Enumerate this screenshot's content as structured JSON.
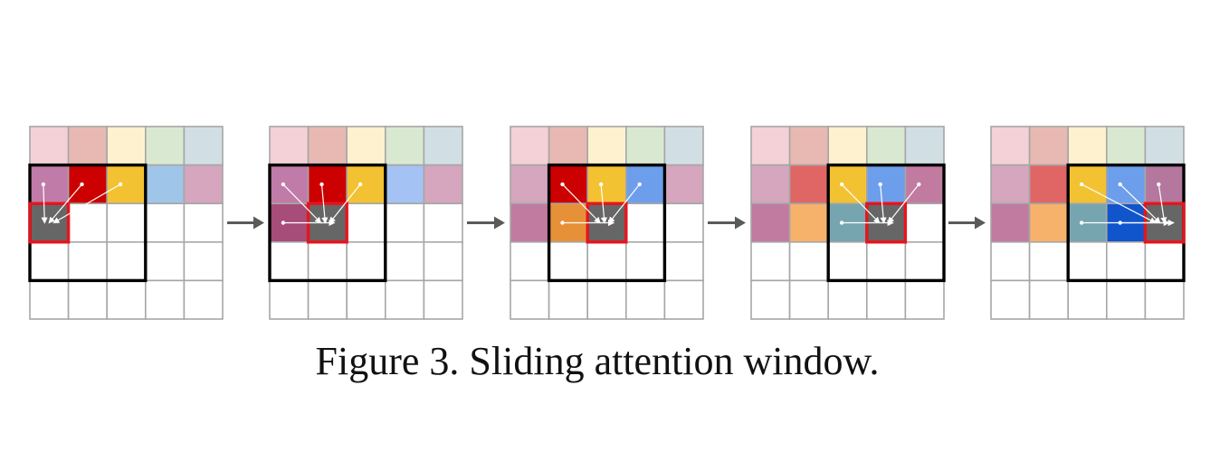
{
  "caption": "Figure 3. Sliding attention window.",
  "grid": {
    "rows": 5,
    "cols": 5,
    "empty_color": "#ffffff",
    "grid_line_color": "#a6a6a6",
    "window_border_color": "#000000",
    "query_border_color": "#e8141c",
    "query_fill_color": "#666666",
    "arrow_color": "#ffffff",
    "connector_icon": "right-arrow-icon",
    "connector_color": "#5a5a5a"
  },
  "steps": [
    {
      "query": [
        2,
        0
      ],
      "window": {
        "row_start": 1,
        "row_end": 3,
        "col_start": 0,
        "col_end": 2
      },
      "cells": [
        [
          "#f3d1d6",
          "#e7b9b2",
          "#fef1cf",
          "#d9e9d1",
          "#d1dfe5"
        ],
        [
          "#c07ba8",
          "#cc0000",
          "#f3c232",
          "#9fc5e8",
          "#d5a6bd"
        ],
        [
          null,
          null,
          null,
          null,
          null
        ],
        [
          null,
          null,
          null,
          null,
          null
        ],
        [
          null,
          null,
          null,
          null,
          null
        ]
      ],
      "sources": [
        [
          1,
          0
        ],
        [
          1,
          1
        ],
        [
          1,
          2
        ]
      ]
    },
    {
      "query": [
        2,
        1
      ],
      "window": {
        "row_start": 1,
        "row_end": 3,
        "col_start": 0,
        "col_end": 2
      },
      "cells": [
        [
          "#f3d1d6",
          "#e7b9b2",
          "#fef1cf",
          "#d9e9d1",
          "#d1dfe5"
        ],
        [
          "#c07ba8",
          "#cc0000",
          "#f3c232",
          "#a4c2f4",
          "#d5a6bd"
        ],
        [
          "#a64d79",
          null,
          null,
          null,
          null
        ],
        [
          null,
          null,
          null,
          null,
          null
        ],
        [
          null,
          null,
          null,
          null,
          null
        ]
      ],
      "sources": [
        [
          1,
          0
        ],
        [
          1,
          1
        ],
        [
          1,
          2
        ],
        [
          2,
          0
        ]
      ]
    },
    {
      "query": [
        2,
        2
      ],
      "window": {
        "row_start": 1,
        "row_end": 3,
        "col_start": 1,
        "col_end": 3
      },
      "cells": [
        [
          "#f3d1d6",
          "#e7b9b2",
          "#fef1cf",
          "#d9e9d1",
          "#d1dfe5"
        ],
        [
          "#d5a6bd",
          "#cc0000",
          "#f3c232",
          "#6d9eeb",
          "#d5a6bd"
        ],
        [
          "#c27ba0",
          "#e69138",
          null,
          null,
          null
        ],
        [
          null,
          null,
          null,
          null,
          null
        ],
        [
          null,
          null,
          null,
          null,
          null
        ]
      ],
      "sources": [
        [
          1,
          1
        ],
        [
          1,
          2
        ],
        [
          1,
          3
        ],
        [
          2,
          1
        ]
      ]
    },
    {
      "query": [
        2,
        3
      ],
      "window": {
        "row_start": 1,
        "row_end": 3,
        "col_start": 2,
        "col_end": 4
      },
      "cells": [
        [
          "#f3d1d6",
          "#e7b9b2",
          "#fef1cf",
          "#d9e9d1",
          "#d1dfe5"
        ],
        [
          "#d5a6bd",
          "#e06666",
          "#f3c232",
          "#6d9eeb",
          "#c27ba0"
        ],
        [
          "#c27ba0",
          "#f6b26b",
          "#76a5af",
          null,
          null
        ],
        [
          null,
          null,
          null,
          null,
          null
        ],
        [
          null,
          null,
          null,
          null,
          null
        ]
      ],
      "sources": [
        [
          1,
          2
        ],
        [
          1,
          3
        ],
        [
          1,
          4
        ],
        [
          2,
          2
        ]
      ]
    },
    {
      "query": [
        2,
        4
      ],
      "window": {
        "row_start": 1,
        "row_end": 3,
        "col_start": 2,
        "col_end": 4
      },
      "cells": [
        [
          "#f3d1d6",
          "#e7b9b2",
          "#fef1cf",
          "#d9e9d1",
          "#d1dfe5"
        ],
        [
          "#d5a6bd",
          "#e06666",
          "#f3c232",
          "#6d9eeb",
          "#b4779e"
        ],
        [
          "#c27ba0",
          "#f6b26b",
          "#76a5af",
          "#1155cc",
          null
        ],
        [
          null,
          null,
          null,
          null,
          null
        ],
        [
          null,
          null,
          null,
          null,
          null
        ]
      ],
      "sources": [
        [
          1,
          2
        ],
        [
          1,
          3
        ],
        [
          1,
          4
        ],
        [
          2,
          2
        ],
        [
          2,
          3
        ]
      ]
    }
  ]
}
